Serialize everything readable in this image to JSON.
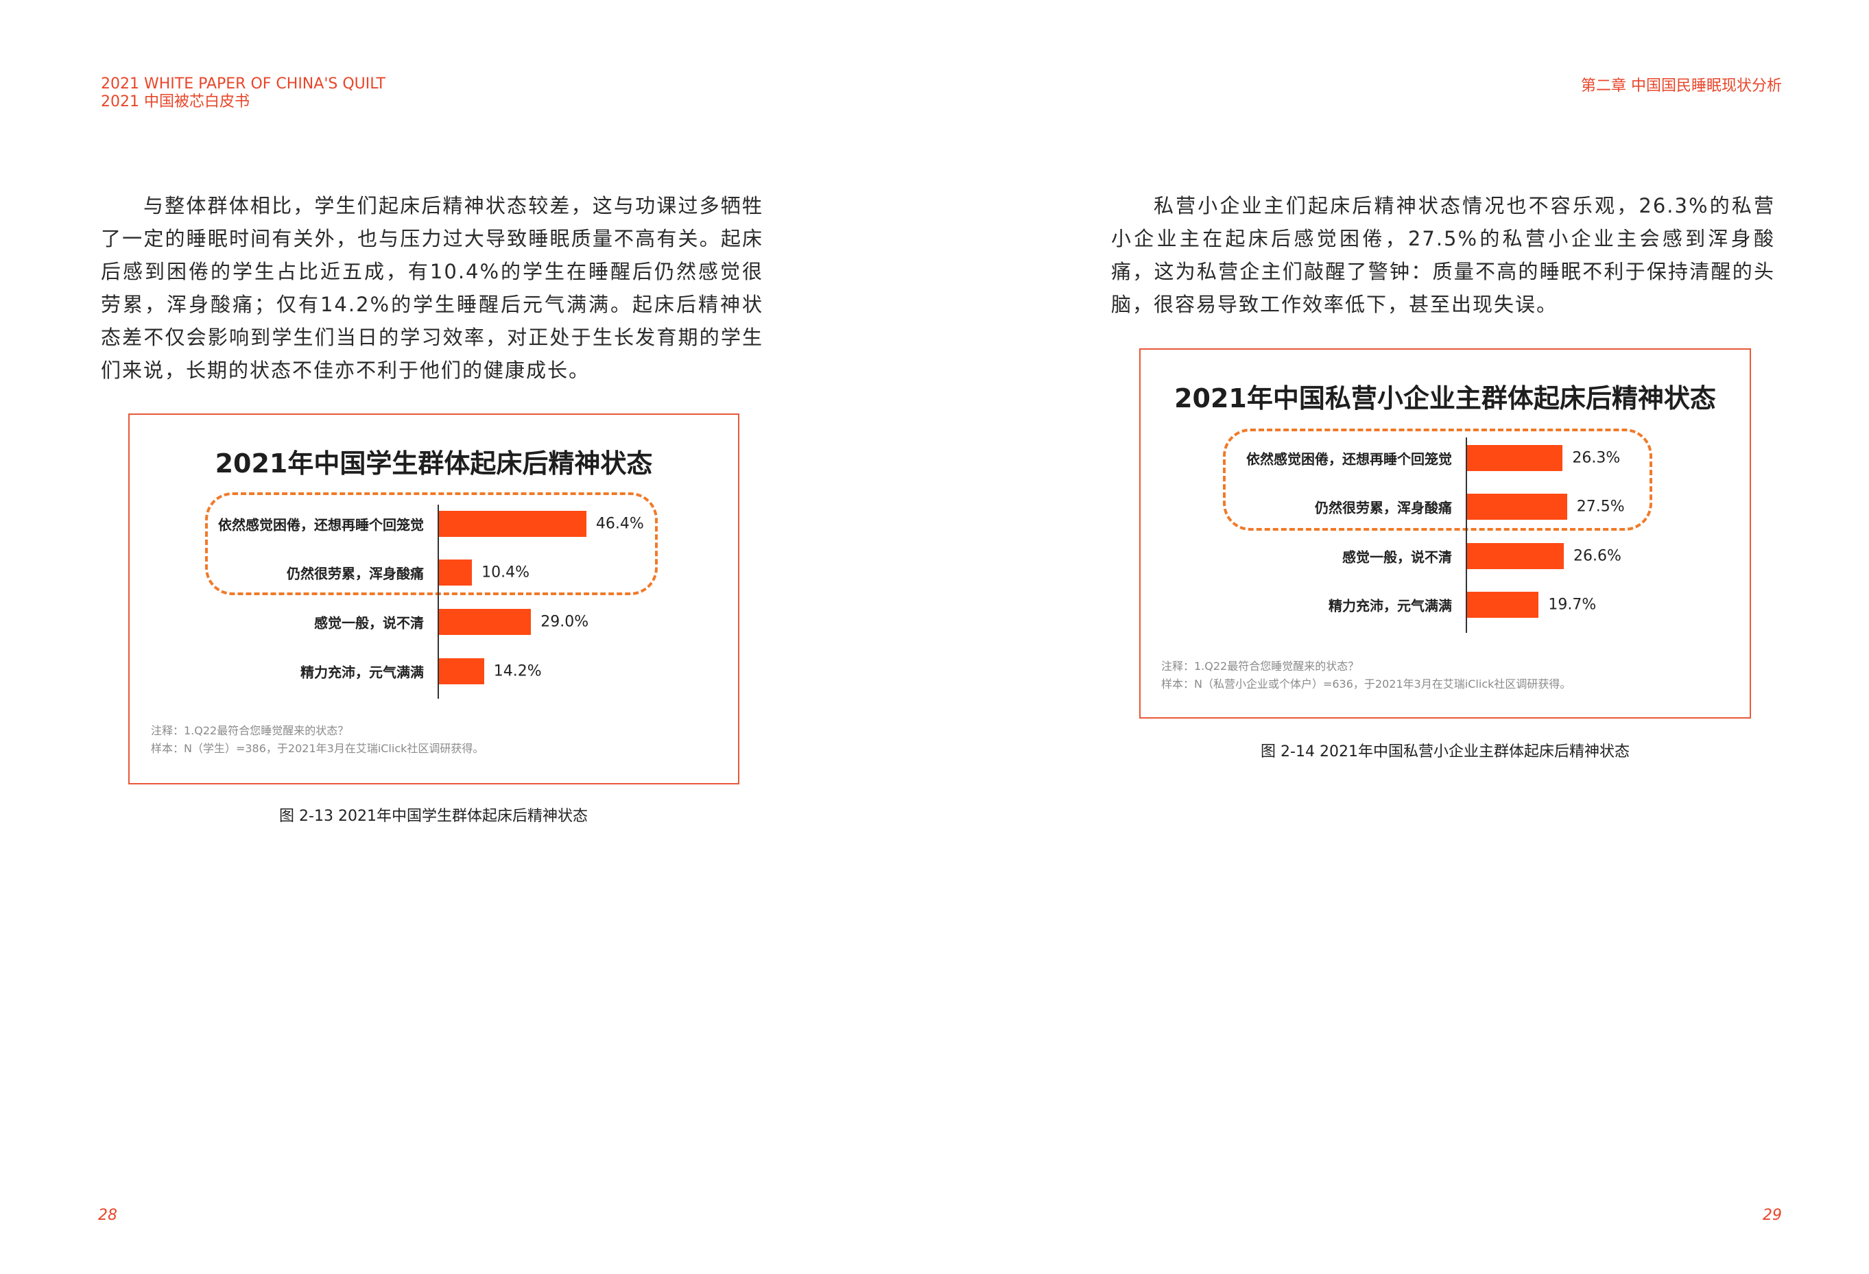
{
  "header": {
    "left_line1": "2021 WHITE PAPER OF CHINA'S QUILT",
    "left_line2": "2021 中国被芯白皮书",
    "right": "第二章  中国国民睡眠现状分析",
    "accent_color": "#e8462a"
  },
  "left_page": {
    "paragraph": "与整体群体相比，学生们起床后精神状态较差，这与功课过多牺牲了一定的睡眠时间有关外，也与压力过大导致睡眠质量不高有关。起床后感到困倦的学生占比近五成，有10.4%的学生在睡醒后仍然感觉很劳累，浑身酸痛；仅有14.2%的学生睡醒后元气满满。起床后精神状态差不仅会影响到学生们当日的学习效率，对正处于生长发育期的学生们来说，长期的状态不佳亦不利于他们的健康成长。",
    "note1": "注释：1.Q22最符合您睡觉醒来的状态？",
    "note2": "样本：N（学生）=386，于2021年3月在艾瑞iClick社区调研获得。",
    "caption": "图 2-13    2021年中国学生群体起床后精神状态",
    "page_number": "28"
  },
  "right_page": {
    "paragraph": "私营小企业主们起床后精神状态情况也不容乐观，26.3%的私营小企业主在起床后感觉困倦，27.5%的私营小企业主会感到浑身酸痛，这为私营企主们敲醒了警钟：质量不高的睡眠不利于保持清醒的头脑，很容易导致工作效率低下，甚至出现失误。",
    "note1": "注释：1.Q22最符合您睡觉醒来的状态？",
    "note2": "样本：N（私营小企业或个体户）=636，于2021年3月在艾瑞iClick社区调研获得。",
    "caption": "图 2-14    2021年中国私营小企业主群体起床后精神状态",
    "page_number": "29"
  },
  "chart_data": [
    {
      "type": "bar",
      "orientation": "horizontal",
      "title": "2021年中国学生群体起床后精神状态",
      "categories": [
        "依然感觉困倦，还想再睡个回笼觉",
        "仍然很劳累，浑身酸痛",
        "感觉一般，说不清",
        "精力充沛，元气满满"
      ],
      "values": [
        46.4,
        10.4,
        29.0,
        14.2
      ],
      "value_labels": [
        "46.4%",
        "10.4%",
        "29.0%",
        "14.2%"
      ],
      "highlighted_categories": [
        0,
        1
      ],
      "bar_color": "#ff4a14",
      "highlight_color": "#f07a2a",
      "grid": false
    },
    {
      "type": "bar",
      "orientation": "horizontal",
      "title": "2021年中国私营小企业主群体起床后精神状态",
      "categories": [
        "依然感觉困倦，还想再睡个回笼觉",
        "仍然很劳累，浑身酸痛",
        "感觉一般，说不清",
        "精力充沛，元气满满"
      ],
      "values": [
        26.3,
        27.5,
        26.6,
        19.7
      ],
      "value_labels": [
        "26.3%",
        "27.5%",
        "26.6%",
        "19.7%"
      ],
      "highlighted_categories": [
        0,
        1
      ],
      "bar_color": "#ff4a14",
      "highlight_color": "#f07a2a",
      "grid": false
    }
  ]
}
